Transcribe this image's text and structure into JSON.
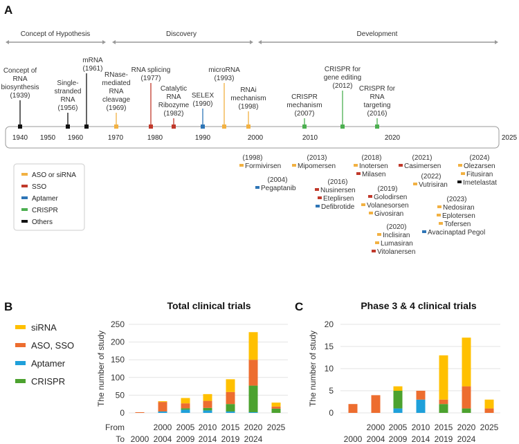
{
  "panels": {
    "a": "A",
    "b": "B",
    "c": "C"
  },
  "colors": {
    "aso_sirna": "#F2B142",
    "sso": "#C0392B",
    "aptamer": "#2E75B6",
    "crispr": "#4CAF50",
    "others": "#111111",
    "chart_sirna": "#FFC000",
    "chart_aso": "#ED6D2F",
    "chart_aptamer": "#1FA0DA",
    "chart_crispr": "#4CA22F"
  },
  "timeline": {
    "phases": [
      "Concept of Hypothesis",
      "Discovery",
      "Development"
    ],
    "year_labels": [
      "1940",
      "1950",
      "1960",
      "1970",
      "1980",
      "1990",
      "2000",
      "2010",
      "2020",
      "2025"
    ],
    "events": [
      {
        "lines": [
          "Concept of",
          "RNA",
          "biosynthesis",
          "(1939)"
        ],
        "category": "others"
      },
      {
        "lines": [
          "Single-",
          "stranded",
          "RNA",
          "(1956)"
        ],
        "category": "others"
      },
      {
        "lines": [
          "mRNA",
          "(1961)"
        ],
        "category": "others"
      },
      {
        "lines": [
          "RNase-",
          "mediated",
          "RNA",
          "cleavage",
          "(1969)"
        ],
        "category": "aso_sirna"
      },
      {
        "lines": [
          "RNA splicing",
          "(1977)"
        ],
        "category": "sso"
      },
      {
        "lines": [
          "Catalytic",
          "RNA",
          "Ribozyme",
          "(1982)"
        ],
        "category": "sso"
      },
      {
        "lines": [
          "SELEX",
          "(1990)"
        ],
        "category": "aptamer"
      },
      {
        "lines": [
          "microRNA",
          "(1993)"
        ],
        "category": "aso_sirna"
      },
      {
        "lines": [
          "RNAi",
          "mechanism",
          "(1998)"
        ],
        "category": "aso_sirna"
      },
      {
        "lines": [
          "CRISPR",
          "mechanism",
          "(2007)"
        ],
        "category": "crispr"
      },
      {
        "lines": [
          "CRISPR for",
          "gene editing",
          "(2012)"
        ],
        "category": "crispr"
      },
      {
        "lines": [
          "CRISPR for",
          "RNA",
          "targeting",
          "(2016)"
        ],
        "category": "crispr"
      }
    ],
    "legend": [
      {
        "label": "ASO or siRNA",
        "category": "aso_sirna"
      },
      {
        "label": "SSO",
        "category": "sso"
      },
      {
        "label": "Aptamer",
        "category": "aptamer"
      },
      {
        "label": "CRISPR",
        "category": "crispr"
      },
      {
        "label": "Others",
        "category": "others"
      }
    ],
    "approvals": [
      {
        "year": "(1998)",
        "drugs": [
          {
            "name": "Formivirsen",
            "category": "aso_sirna"
          }
        ]
      },
      {
        "year": "(2004)",
        "drugs": [
          {
            "name": "Pegaptanib",
            "category": "aptamer"
          }
        ]
      },
      {
        "year": "(2013)",
        "drugs": [
          {
            "name": "Mipomersen",
            "category": "aso_sirna"
          }
        ]
      },
      {
        "year": "(2016)",
        "drugs": [
          {
            "name": "Nusinersen",
            "category": "sso"
          },
          {
            "name": "Eteplirsen",
            "category": "sso"
          },
          {
            "name": "Defibrotide",
            "category": "aptamer"
          }
        ]
      },
      {
        "year": "(2018)",
        "drugs": [
          {
            "name": "Inotersen",
            "category": "aso_sirna"
          },
          {
            "name": "Milasen",
            "category": "sso"
          }
        ]
      },
      {
        "year": "(2019)",
        "drugs": [
          {
            "name": "Golodirsen",
            "category": "sso"
          },
          {
            "name": "Volanesorsen",
            "category": "aso_sirna"
          },
          {
            "name": "Givosiran",
            "category": "aso_sirna"
          }
        ]
      },
      {
        "year": "(2020)",
        "drugs": [
          {
            "name": "Inclisiran",
            "category": "aso_sirna"
          },
          {
            "name": "Lumasiran",
            "category": "aso_sirna"
          },
          {
            "name": "Vitolanersen",
            "category": "sso"
          }
        ]
      },
      {
        "year": "(2021)",
        "drugs": [
          {
            "name": "Casimersen",
            "category": "sso"
          }
        ]
      },
      {
        "year": "(2022)",
        "drugs": [
          {
            "name": "Vutrisiran",
            "category": "aso_sirna"
          }
        ]
      },
      {
        "year": "(2023)",
        "drugs": [
          {
            "name": "Nedosiran",
            "category": "aso_sirna"
          },
          {
            "name": "Eplotersen",
            "category": "aso_sirna"
          },
          {
            "name": "Tofersen",
            "category": "aso_sirna"
          },
          {
            "name": "Avacinaptad Pegol",
            "category": "aptamer"
          }
        ]
      },
      {
        "year": "(2024)",
        "drugs": [
          {
            "name": "Olezarsen",
            "category": "aso_sirna"
          },
          {
            "name": "Fitusiran",
            "category": "aso_sirna"
          },
          {
            "name": "Imetelastat",
            "category": "others"
          }
        ]
      }
    ]
  },
  "chart_legend": [
    "siRNA",
    "ASO, SSO",
    "Aptamer",
    "CRISPR"
  ],
  "chart_data": [
    {
      "type": "bar",
      "stacked": true,
      "title": "Total clinical trials",
      "ylabel": "The number of study",
      "row_labels": [
        "From",
        "To"
      ],
      "categories": [
        {
          "from": "",
          "to": "2000"
        },
        {
          "from": "2000",
          "to": "2004"
        },
        {
          "from": "2005",
          "to": "2009"
        },
        {
          "from": "2010",
          "to": "2014"
        },
        {
          "from": "2015",
          "to": "2019"
        },
        {
          "from": "2020",
          "to": "2024"
        },
        {
          "from": "2025",
          "to": ""
        }
      ],
      "ylim": [
        0,
        250
      ],
      "yticks": [
        0,
        50,
        100,
        150,
        200,
        250
      ],
      "grid": true,
      "legend_position": "left",
      "series": [
        {
          "name": "Aptamer",
          "color_key": "chart_aptamer",
          "values": [
            0,
            4,
            9,
            7,
            4,
            2,
            0
          ]
        },
        {
          "name": "CRISPR",
          "color_key": "chart_crispr",
          "values": [
            0,
            0,
            4,
            7,
            21,
            75,
            12
          ]
        },
        {
          "name": "ASO, SSO",
          "color_key": "chart_aso",
          "values": [
            2,
            27,
            14,
            20,
            34,
            73,
            6
          ]
        },
        {
          "name": "siRNA",
          "color_key": "chart_sirna",
          "values": [
            0,
            2,
            15,
            19,
            36,
            78,
            11
          ]
        }
      ]
    },
    {
      "type": "bar",
      "stacked": true,
      "title": "Phase 3 & 4 clinical trials",
      "ylabel": "The number of study",
      "categories": [
        {
          "from": "",
          "to": "2000"
        },
        {
          "from": "2000",
          "to": "2004"
        },
        {
          "from": "2005",
          "to": "2009"
        },
        {
          "from": "2010",
          "to": "2014"
        },
        {
          "from": "2015",
          "to": "2019"
        },
        {
          "from": "2020",
          "to": "2024"
        },
        {
          "from": "2025",
          "to": ""
        }
      ],
      "ylim": [
        0,
        20
      ],
      "yticks": [
        0,
        5,
        10,
        15,
        20
      ],
      "grid": true,
      "series": [
        {
          "name": "Aptamer",
          "color_key": "chart_aptamer",
          "values": [
            0,
            0,
            1,
            3,
            0,
            0,
            0
          ]
        },
        {
          "name": "CRISPR",
          "color_key": "chart_crispr",
          "values": [
            0,
            0,
            4,
            0,
            2,
            1,
            0
          ]
        },
        {
          "name": "ASO, SSO",
          "color_key": "chart_aso",
          "values": [
            2,
            4,
            0,
            2,
            1,
            5,
            1
          ]
        },
        {
          "name": "siRNA",
          "color_key": "chart_sirna",
          "values": [
            0,
            0,
            1,
            0,
            10,
            11,
            2
          ]
        }
      ]
    }
  ]
}
